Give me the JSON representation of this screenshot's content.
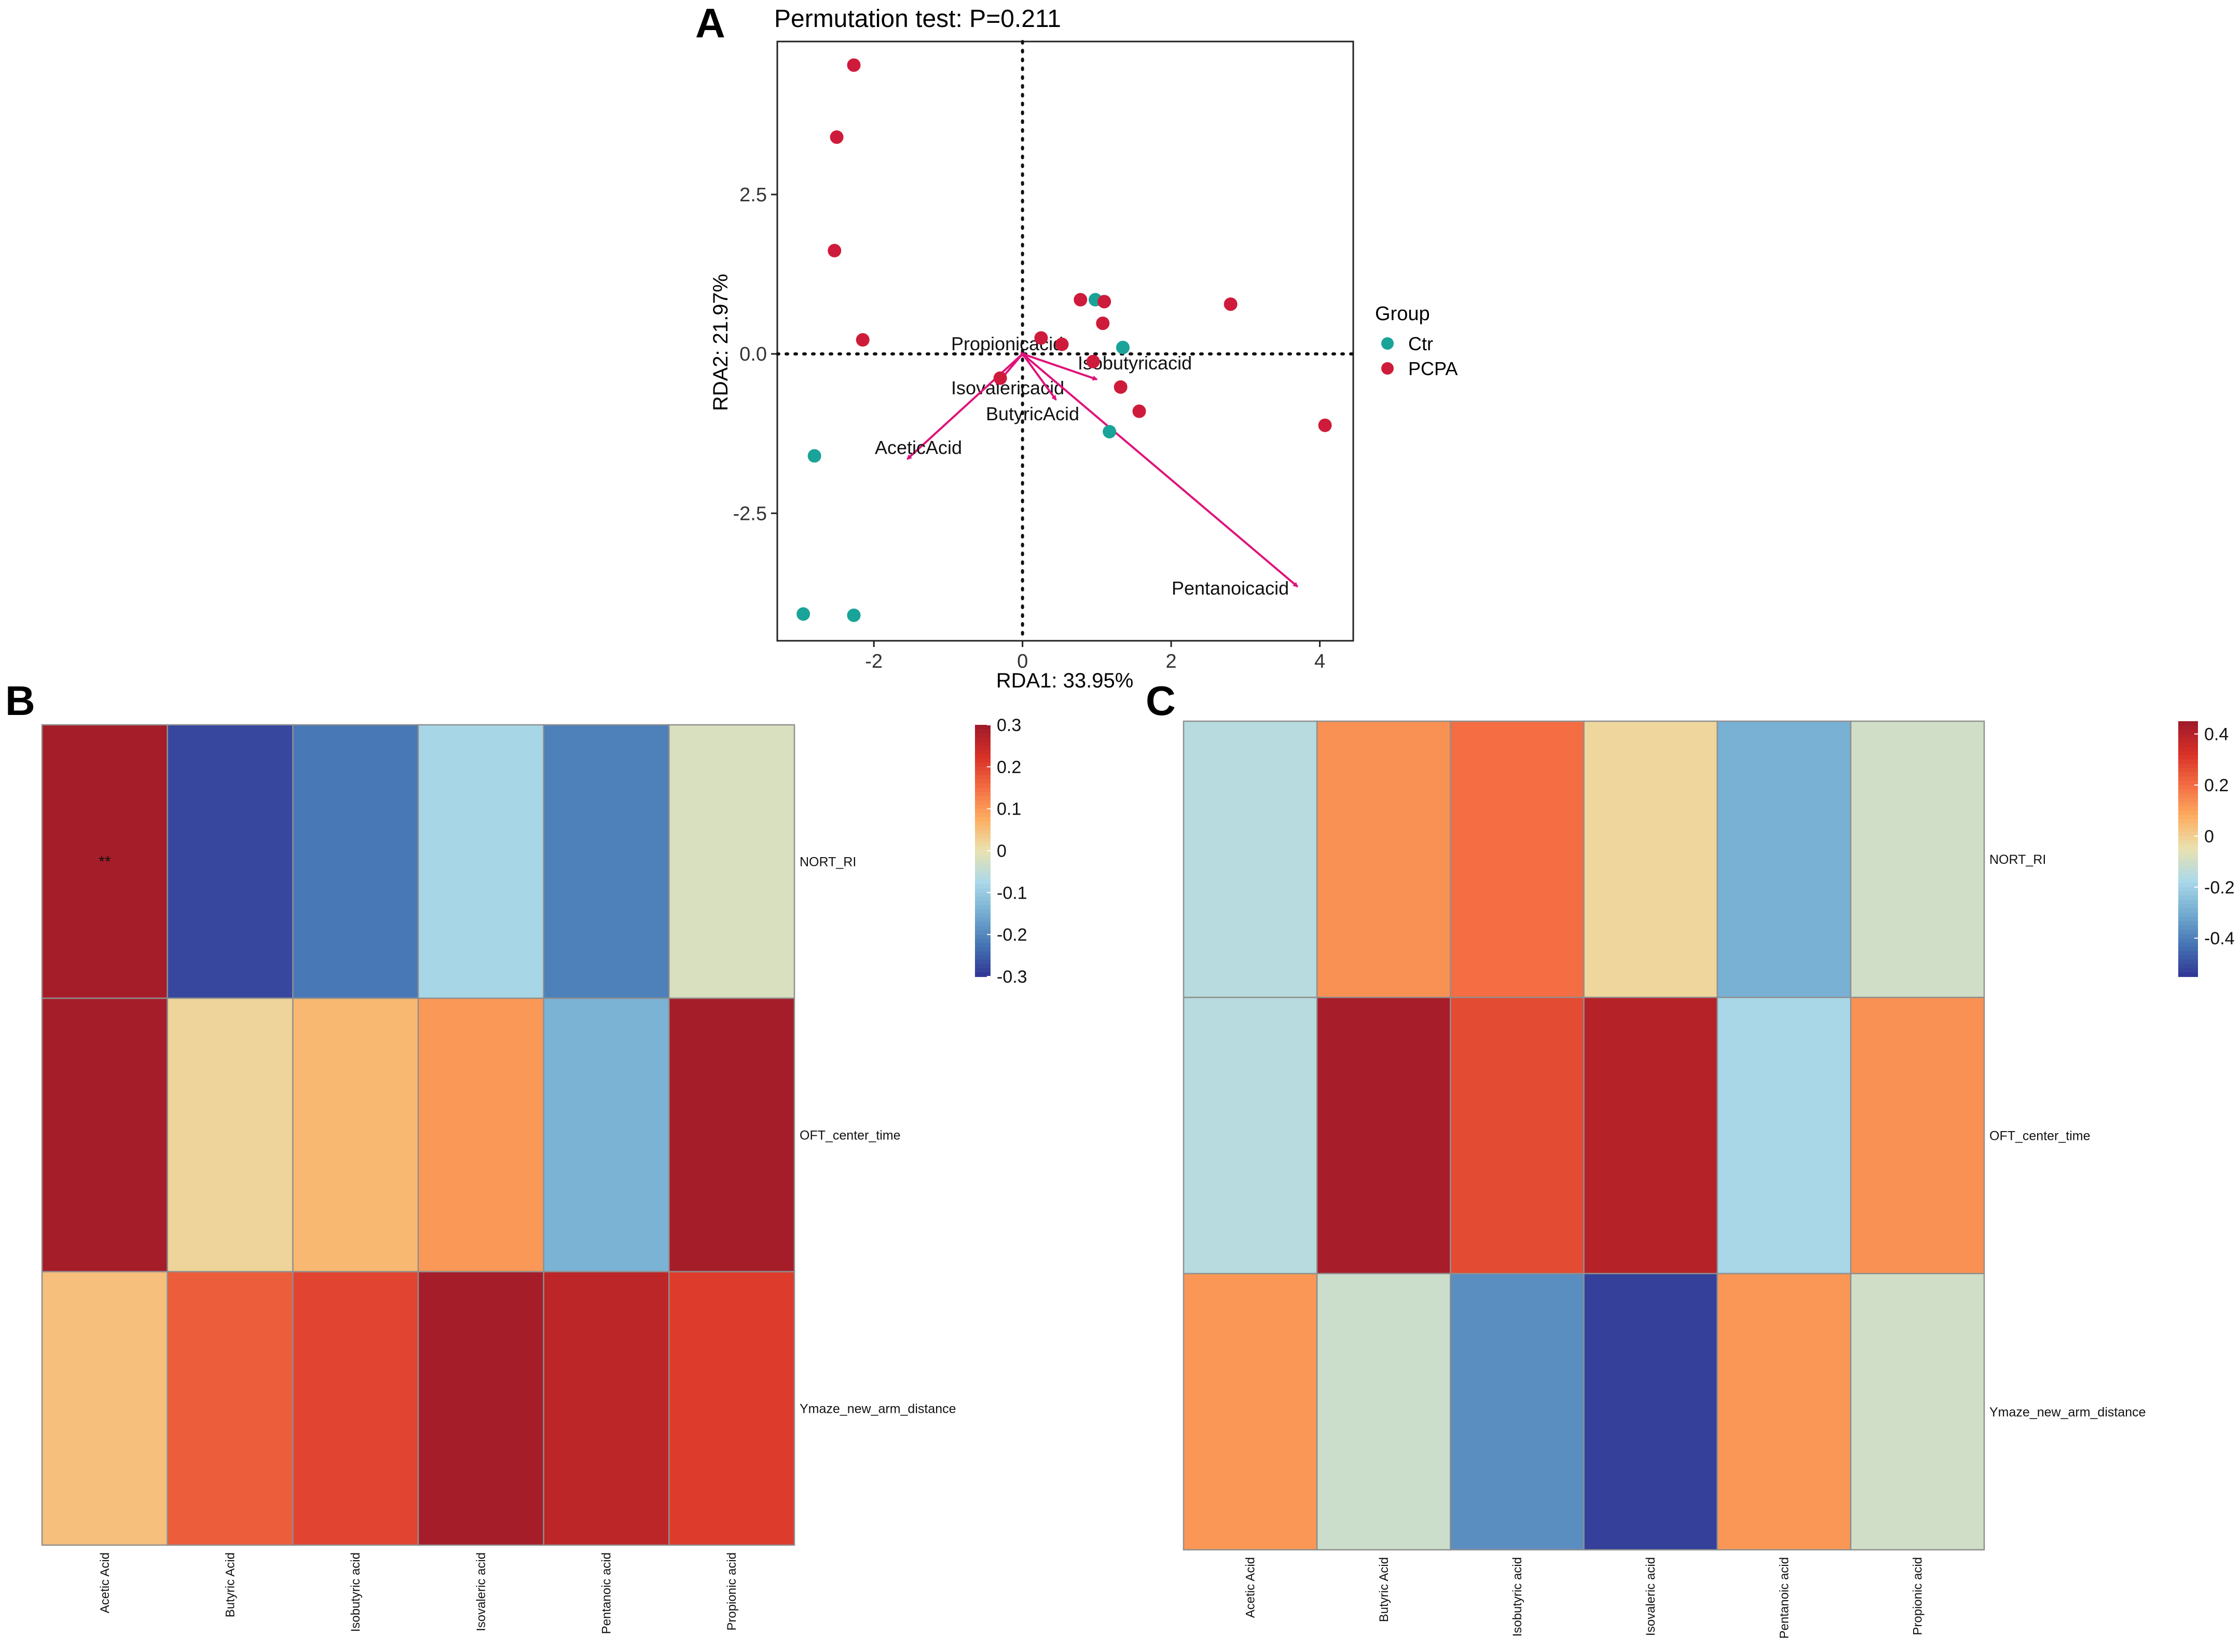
{
  "panels": {
    "a": "A",
    "b": "B",
    "c": "C"
  },
  "colors": {
    "ctr": "#1aa398",
    "pcpa": "#cf1b3b",
    "arrow": "#e0127a",
    "axis": "#222222",
    "cell_border": "#8f8f8f"
  },
  "chart_data": [
    {
      "type": "scatter",
      "title": "Permutation test: P=0.211",
      "xlabel": "RDA1: 33.95%",
      "ylabel": "RDA2: 21.97%",
      "xlim": [
        -3.3,
        4.45
      ],
      "ylim": [
        -4.5,
        4.9
      ],
      "xticks": [
        {
          "value": -2,
          "label": "-2"
        },
        {
          "value": 0,
          "label": "0"
        },
        {
          "value": 2,
          "label": "2"
        },
        {
          "value": 4,
          "label": "4"
        }
      ],
      "yticks": [
        {
          "value": 2.5,
          "label": "2.5"
        },
        {
          "value": 0,
          "label": "0.0"
        },
        {
          "value": -2.5,
          "label": "-2.5"
        }
      ],
      "legend": {
        "title": "Group",
        "position": "right",
        "entries": [
          {
            "name": "Ctr",
            "color": "#1aa398"
          },
          {
            "name": "PCPA",
            "color": "#cf1b3b"
          }
        ]
      },
      "series": [
        {
          "name": "Ctr",
          "color": "#1aa398",
          "points": [
            [
              -2.95,
              -4.08
            ],
            [
              -2.27,
              -4.1
            ],
            [
              -2.8,
              -1.6
            ],
            [
              0.98,
              0.85
            ],
            [
              1.35,
              0.1
            ],
            [
              1.17,
              -1.22
            ]
          ]
        },
        {
          "name": "PCPA",
          "color": "#cf1b3b",
          "points": [
            [
              -2.27,
              4.53
            ],
            [
              -2.5,
              3.4
            ],
            [
              -2.53,
              1.62
            ],
            [
              -2.15,
              0.22
            ],
            [
              0.25,
              0.25
            ],
            [
              0.53,
              0.15
            ],
            [
              0.78,
              0.85
            ],
            [
              1.1,
              0.82
            ],
            [
              1.08,
              0.48
            ],
            [
              0.95,
              -0.12
            ],
            [
              1.32,
              -0.52
            ],
            [
              1.57,
              -0.9
            ],
            [
              2.8,
              0.78
            ],
            [
              4.07,
              -1.12
            ],
            [
              -0.3,
              -0.38
            ]
          ]
        }
      ],
      "vectors": [
        {
          "name": "Propionicacid",
          "x": -0.02,
          "y": 0.02
        },
        {
          "name": "Isobutyricacid",
          "x": 1.0,
          "y": -0.4
        },
        {
          "name": "Isovalericacid",
          "x": -0.35,
          "y": -0.48
        },
        {
          "name": "ButyricAcid",
          "x": 0.45,
          "y": -0.72
        },
        {
          "name": "AceticAcid",
          "x": -1.55,
          "y": -1.65
        },
        {
          "name": "Pentanoicacid",
          "x": 3.7,
          "y": -3.65
        }
      ]
    },
    {
      "type": "heatmap",
      "columns": [
        "Acetic Acid",
        "Butyric Acid",
        "Isobutyric acid",
        "Isovaleric acid",
        "Pentanoic acid",
        "Propionic acid"
      ],
      "rows": [
        "NORT_RI",
        "OFT_center_time",
        "Ymaze_new_arm_distance"
      ],
      "values": [
        [
          0.29,
          -0.28,
          -0.22,
          -0.08,
          -0.21,
          -0.02
        ],
        [
          0.29,
          0.02,
          0.06,
          0.1,
          -0.14,
          0.29
        ],
        [
          0.05,
          0.17,
          0.2,
          0.29,
          0.26,
          0.21
        ]
      ],
      "annotations": [
        {
          "row": 0,
          "col": 0,
          "text": "**"
        }
      ],
      "colorbar": {
        "min": -0.3,
        "max": 0.3,
        "ticks": [
          {
            "value": 0.3,
            "label": "0.3"
          },
          {
            "value": 0.2,
            "label": "0.2"
          },
          {
            "value": 0.1,
            "label": "0.1"
          },
          {
            "value": 0,
            "label": "0"
          },
          {
            "value": -0.1,
            "label": "-0.1"
          },
          {
            "value": -0.2,
            "label": "-0.2"
          },
          {
            "value": -0.3,
            "label": "-0.3"
          }
        ]
      }
    },
    {
      "type": "heatmap",
      "columns": [
        "Acetic Acid",
        "Butyric Acid",
        "Isobutyric acid",
        "Isovaleric acid",
        "Pentanoic acid",
        "Propionic acid"
      ],
      "rows": [
        "NORT_RI",
        "OFT_center_time",
        "Ymaze_new_arm_distance"
      ],
      "values": [
        [
          -0.15,
          0.13,
          0.2,
          -0.02,
          -0.29,
          -0.1
        ],
        [
          -0.15,
          0.43,
          0.27,
          0.4,
          -0.18,
          0.13
        ],
        [
          0.12,
          -0.11,
          -0.37,
          -0.53,
          0.12,
          -0.1
        ]
      ],
      "annotations": [],
      "colorbar": {
        "min": -0.55,
        "max": 0.45,
        "ticks": [
          {
            "value": 0.4,
            "label": "0.4"
          },
          {
            "value": 0.2,
            "label": "0.2"
          },
          {
            "value": 0,
            "label": "0"
          },
          {
            "value": -0.2,
            "label": "-0.2"
          },
          {
            "value": -0.4,
            "label": "-0.4"
          }
        ]
      }
    }
  ]
}
